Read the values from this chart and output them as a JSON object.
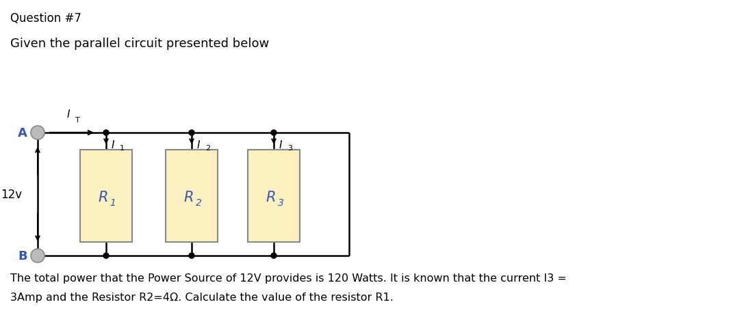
{
  "title_line1": "Question #7",
  "title_line2": "Given the parallel circuit presented below",
  "footer_line1": "The total power that the Power Source of 12V provides is 120 Watts. It is known that the current I3 =",
  "footer_line2": "3Amp and the Resistor R2=4Ω. Calculate the value of the resistor R1.",
  "voltage_label": "12v",
  "resistor_labels": [
    "R",
    "R",
    "R"
  ],
  "resistor_subs": [
    "1",
    "2",
    "3"
  ],
  "node_A_label": "A",
  "node_B_label": "B",
  "circuit_color": "#000000",
  "resistor_fill": "#FDF0C0",
  "resistor_edge": "#888888",
  "label_color": "#3355BB",
  "background_color": "#ffffff",
  "node_circle_facecolor": "#BBBBBB",
  "node_circle_edgecolor": "#888888"
}
